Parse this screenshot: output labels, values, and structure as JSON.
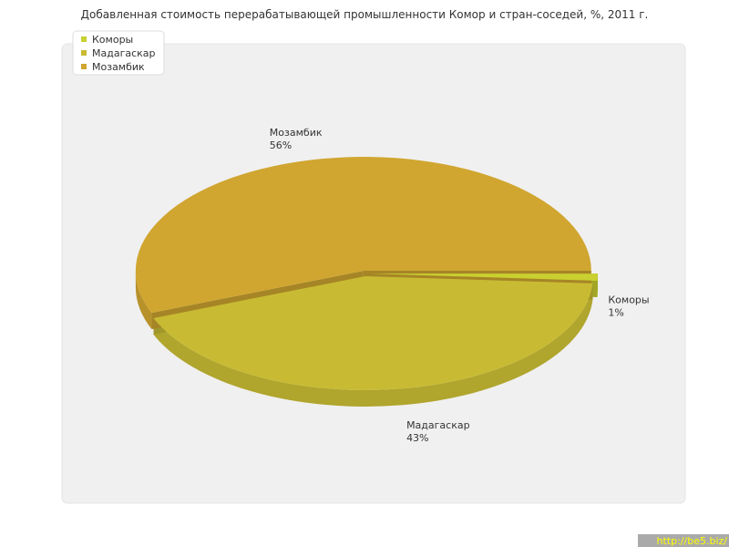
{
  "chart_data": {
    "type": "pie",
    "title": "Добавленная стоимость перерабатывающей промышленности Комор и стран-соседей, %, 2011 г.",
    "categories": [
      "Коморы",
      "Мадагаскар",
      "Мозамбик"
    ],
    "values": [
      1,
      43,
      56
    ],
    "value_labels": [
      "1%",
      "43%",
      "56%"
    ],
    "colors": [
      "#c9d02f",
      "#c8bb33",
      "#d0a630"
    ],
    "legend": "top-left",
    "watermark": "http://be5.biz/"
  }
}
